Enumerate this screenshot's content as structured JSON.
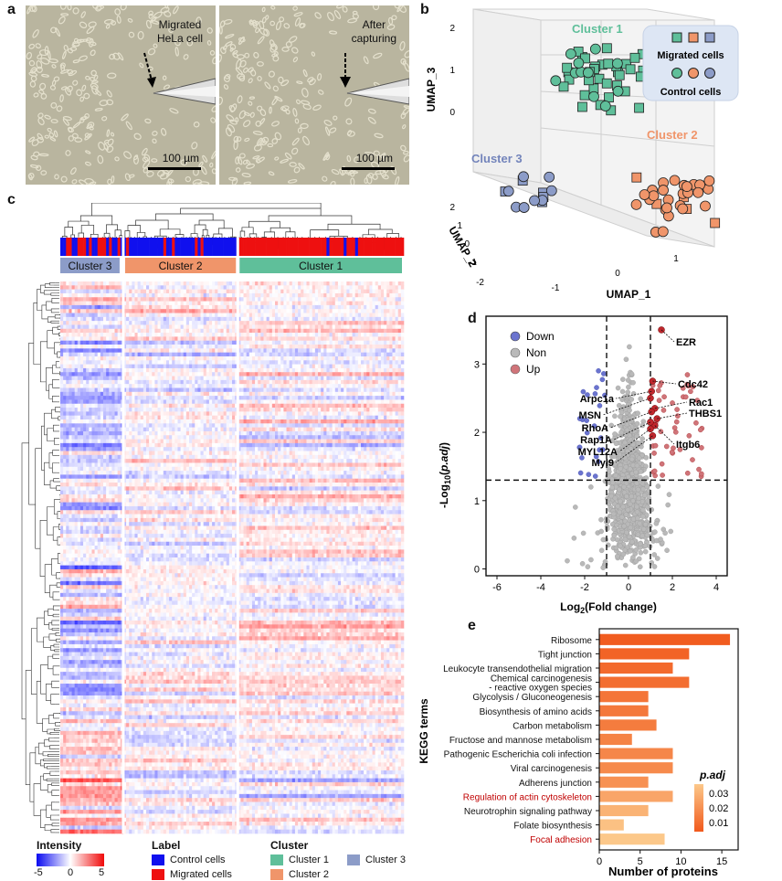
{
  "panels": {
    "a": "a",
    "b": "b",
    "c": "c",
    "d": "d",
    "e": "e"
  },
  "micrographs": [
    {
      "label_line1": "Migrated",
      "label_line2": "HeLa cell",
      "scalebar": "100 µm"
    },
    {
      "label_line1": "After",
      "label_line2": "capturing",
      "scalebar": "100 µm"
    }
  ],
  "colors": {
    "cluster1": "#5fbf9a",
    "cluster2": "#f0956a",
    "cluster3": "#8c9cc8",
    "control": "#1010ee",
    "migrated": "#ee1010",
    "down": "#6b74cf",
    "non": "#b9b9b9",
    "up": "#c0272d",
    "kegg": "#f16a2b"
  },
  "heatmap": {
    "cluster_labels": [
      "Cluster 3",
      "Cluster 2",
      "Cluster 1"
    ],
    "legend": {
      "intensity_title": "Intensity",
      "ticks": [
        "-5",
        "0",
        "5"
      ],
      "label_title": "Label",
      "label_items": [
        "Control cells",
        "Migrated cells"
      ],
      "cluster_title": "Cluster",
      "cluster_items": [
        "Cluster 1",
        "Cluster 2",
        "Cluster 3"
      ]
    }
  },
  "chart_data": [
    {
      "panel": "b",
      "type": "scatter",
      "title": "",
      "axes": {
        "x": "UMAP_1",
        "y": "UMAP_2",
        "z": "UMAP_3"
      },
      "x_ticks": [
        "-1",
        "0",
        "1"
      ],
      "y_ticks": [
        "-2",
        "-1",
        "0",
        "1",
        "2"
      ],
      "z_ticks": [
        "0",
        "1",
        "2"
      ],
      "cluster_labels": [
        "Cluster 1",
        "Cluster 2",
        "Cluster 3"
      ],
      "legend": {
        "migrated": "Migrated cells",
        "control": "Control cells"
      },
      "series": [
        {
          "name": "Cluster 1",
          "n_migrated": 34,
          "n_control": 11
        },
        {
          "name": "Cluster 2",
          "n_migrated": 6,
          "n_control": 26
        },
        {
          "name": "Cluster 3",
          "n_migrated": 5,
          "n_control": 8
        }
      ]
    },
    {
      "panel": "d",
      "type": "scatter",
      "xlabel": "Log2(Fold change)",
      "ylabel": "-Log10(p.adj)",
      "xlim": [
        -6.5,
        4.5
      ],
      "ylim": [
        -0.1,
        3.7
      ],
      "x_ticks": [
        "-6",
        "-4",
        "-2",
        "0",
        "2",
        "4"
      ],
      "y_ticks": [
        "0",
        "1",
        "2",
        "3"
      ],
      "thresholds": {
        "x": [
          -1,
          1
        ],
        "y": 1.3
      },
      "legend": [
        "Down",
        "Non",
        "Up"
      ],
      "labeled_points": [
        {
          "name": "EZR",
          "x": 1.5,
          "y": 3.5
        },
        {
          "name": "Cdc42",
          "x": 1.1,
          "y": 2.75
        },
        {
          "name": "Rac1",
          "x": 1.2,
          "y": 2.35
        },
        {
          "name": "THBS1",
          "x": 1.3,
          "y": 2.2
        },
        {
          "name": "Itgb6",
          "x": 1.2,
          "y": 2.1
        },
        {
          "name": "Arpc1a",
          "x": 1.05,
          "y": 2.6
        },
        {
          "name": "MSN",
          "x": 1.0,
          "y": 2.5
        },
        {
          "name": "RhoA",
          "x": 1.05,
          "y": 2.3
        },
        {
          "name": "Rap1A",
          "x": 1.0,
          "y": 2.15
        },
        {
          "name": "MYL12A",
          "x": 1.0,
          "y": 2.05
        },
        {
          "name": "Myl9",
          "x": 1.1,
          "y": 1.95
        }
      ]
    },
    {
      "panel": "e",
      "type": "bar",
      "orientation": "horizontal",
      "xlabel": "Number of proteins",
      "ylabel": "KEGG terms",
      "xlim": [
        0,
        17
      ],
      "x_ticks": [
        "0",
        "5",
        "10",
        "15"
      ],
      "categories": [
        "Ribosome",
        "Tight junction",
        "Leukocyte transendothelial migration",
        "Chemical carcinogenesis\n- reactive oxygen species",
        "Glycolysis / Gluconeogenesis",
        "Biosynthesis of amino acids",
        "Carbon metabolism",
        "Fructose and mannose metabolism",
        "Pathogenic Escherichia coli infection",
        "Viral carcinogenesis",
        "Adherens junction",
        "Regulation of actin cytoskeleton",
        "Neurotrophin signaling pathway",
        "Folate biosynthesis",
        "Focal adhesion"
      ],
      "highlight": [
        "Regulation of actin cytoskeleton",
        "Focal adhesion"
      ],
      "values": [
        16,
        11,
        9,
        11,
        6,
        6,
        7,
        4,
        9,
        9,
        6,
        9,
        6,
        3,
        8
      ],
      "p_adj": [
        0.001,
        0.003,
        0.005,
        0.006,
        0.008,
        0.009,
        0.01,
        0.012,
        0.013,
        0.014,
        0.016,
        0.022,
        0.026,
        0.03,
        0.032
      ],
      "colorbar": {
        "title": "p.adj",
        "ticks": [
          "0.03",
          "0.02",
          "0.01"
        ]
      }
    }
  ]
}
